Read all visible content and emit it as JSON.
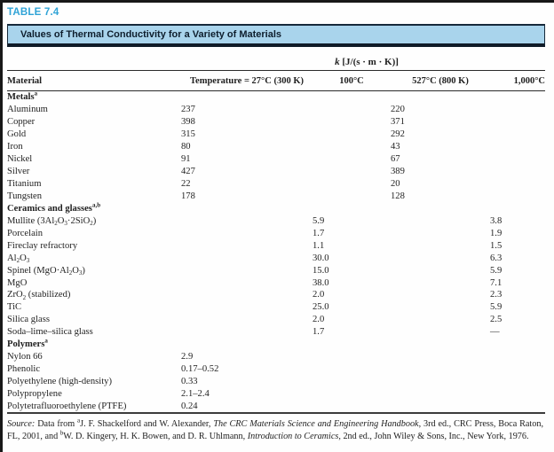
{
  "table_label": "TABLE 7.4",
  "banner_title": "Values of Thermal Conductivity for a Variety of Materials",
  "units_spanner": "*k* [J/(s · m · K)]",
  "columns": [
    "Material",
    "Temperature = 27°C (300 K)",
    "100°C",
    "527°C (800 K)",
    "1,000°C"
  ],
  "sections": [
    {
      "header": "Metals^{a}",
      "rows": [
        [
          "Aluminum",
          "237",
          "",
          "220",
          ""
        ],
        [
          "Copper",
          "398",
          "",
          "371",
          ""
        ],
        [
          "Gold",
          "315",
          "",
          "292",
          ""
        ],
        [
          "Iron",
          "80",
          "",
          "43",
          ""
        ],
        [
          "Nickel",
          "91",
          "",
          "67",
          ""
        ],
        [
          "Silver",
          "427",
          "",
          "389",
          ""
        ],
        [
          "Titanium",
          "22",
          "",
          "20",
          ""
        ],
        [
          "Tungsten",
          "178",
          "",
          "128",
          ""
        ]
      ]
    },
    {
      "header": "Ceramics and glasses^{a,b}",
      "rows": [
        [
          "Mullite (3Al_{2}O_{3}·2SiO_{2})",
          "",
          "5.9",
          "",
          "3.8"
        ],
        [
          "Porcelain",
          "",
          "1.7",
          "",
          "1.9"
        ],
        [
          "Fireclay refractory",
          "",
          "1.1",
          "",
          "1.5"
        ],
        [
          "Al_{2}O_{3}",
          "",
          "30.0",
          "",
          "6.3"
        ],
        [
          "Spinel (MgO·Al_{2}O_{3})",
          "",
          "15.0",
          "",
          "5.9"
        ],
        [
          "MgO",
          "",
          "38.0",
          "",
          "7.1"
        ],
        [
          "ZrO_{2} (stabilized)",
          "",
          "2.0",
          "",
          "2.3"
        ],
        [
          "TiC",
          "",
          "25.0",
          "",
          "5.9"
        ],
        [
          "Silica glass",
          "",
          "2.0",
          "",
          "2.5"
        ],
        [
          "Soda–lime–silica glass",
          "",
          "1.7",
          "",
          "—"
        ]
      ]
    },
    {
      "header": "Polymers^{a}",
      "rows": [
        [
          "Nylon 66",
          "2.9",
          "",
          "",
          ""
        ],
        [
          "Phenolic",
          "0.17–0.52",
          "",
          "",
          ""
        ],
        [
          "Polyethylene (high-density)",
          "0.33",
          "",
          "",
          ""
        ],
        [
          "Polypropylene",
          "2.1–2.4",
          "",
          "",
          ""
        ],
        [
          "Polytetrafluoroethylene (PTFE)",
          "0.24",
          "",
          "",
          ""
        ]
      ]
    }
  ],
  "source_note": "*Source:* Data from ^{a}J. F. Shackelford and W. Alexander, *The CRC Materials Science and Engineering Handbook,* 3rd ed., CRC Press, Boca Raton, FL, 2001, and ^{b}W. D. Kingery, H. K. Bowen, and D. R. Uhlmann, *Introduction to Ceramics,* 2nd ed., John Wiley & Sons, Inc., New York, 1976.",
  "colors": {
    "accent_blue": "#2fa3d6",
    "banner_background": "#a9d4ec",
    "banner_border": "#16293a",
    "rule": "#2a2a2a",
    "text": "#1f1f1f"
  }
}
